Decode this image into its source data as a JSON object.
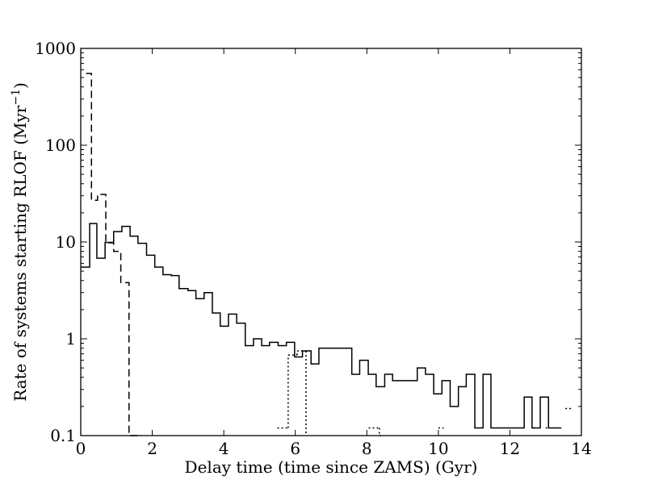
{
  "chart_data": {
    "type": "line",
    "title": "",
    "xlabel": "Delay time (time since ZAMS) (Gyr)",
    "ylabel": "Rate of systems starting RLOF (Myr",
    "ylabel_sup": "−1",
    "ylabel_tail": ")",
    "xlim": [
      0,
      14
    ],
    "ylim": [
      0.1,
      1000
    ],
    "yscale": "log",
    "grid": false,
    "legend": "none",
    "x_ticks": [
      0,
      2,
      4,
      6,
      8,
      10,
      12,
      14
    ],
    "x_tick_labels": [
      "0",
      "2",
      "4",
      "6",
      "8",
      "10",
      "12",
      "14"
    ],
    "y_ticks": [
      0.1,
      1,
      10,
      100,
      1000
    ],
    "y_tick_labels": [
      "0.1",
      "1",
      "10",
      "100",
      "1000"
    ],
    "series": [
      {
        "style": "solid",
        "color": "#000000",
        "step_edges": [
          0,
          0.25,
          0.45,
          0.68,
          0.92,
          1.15,
          1.38,
          1.6,
          1.84,
          2.07,
          2.3,
          2.53,
          2.75,
          3.0,
          3.22,
          3.45,
          3.68,
          3.9,
          4.13,
          4.36,
          4.6,
          4.83,
          5.06,
          5.28,
          5.52,
          5.75,
          5.98,
          6.2,
          6.44,
          6.66,
          6.89,
          7.58,
          7.8,
          8.04,
          8.26,
          8.5,
          8.72,
          8.95,
          9.41,
          9.64,
          9.87,
          10.1,
          10.33,
          10.56,
          10.78,
          11.02,
          11.25,
          11.47,
          11.93,
          12.4,
          12.62,
          12.85,
          13.08
        ],
        "values": [
          5.5,
          15.5,
          6.8,
          9.9,
          12.8,
          14.5,
          11.5,
          9.7,
          7.3,
          5.5,
          4.6,
          4.5,
          3.3,
          3.15,
          2.6,
          3.0,
          1.85,
          1.35,
          1.8,
          1.45,
          0.85,
          1.0,
          0.85,
          0.92,
          0.85,
          0.92,
          0.65,
          0.75,
          0.55,
          0.8,
          0.8,
          0.43,
          0.6,
          0.43,
          0.32,
          0.43,
          0.37,
          0.37,
          0.5,
          0.43,
          0.27,
          0.37,
          0.2,
          0.32,
          0.43,
          0.12,
          0.43,
          0.12,
          0.12,
          0.25,
          0.12,
          0.25,
          0.12
        ]
      },
      {
        "style": "dashed",
        "color": "#000000",
        "step_edges": [
          0.15,
          0.3,
          0.47,
          0.7,
          0.92,
          1.12,
          1.35
        ],
        "values": [
          550,
          27,
          31,
          9.8,
          8.0,
          3.8,
          0.1
        ]
      },
      {
        "style": "dotted",
        "color": "#000000",
        "segments": [
          {
            "x0": 5.5,
            "x1": 5.8,
            "y": 0.12
          },
          {
            "x0": 5.8,
            "x1": 6.05,
            "y": 0.68
          },
          {
            "x0": 6.05,
            "x1": 6.3,
            "y": 0.75
          },
          {
            "x0": 8.05,
            "x1": 8.35,
            "y": 0.12
          },
          {
            "x0": 8.35,
            "x1": 8.42,
            "y": 0.1
          },
          {
            "x0": 10.0,
            "x1": 10.15,
            "y": 0.12
          },
          {
            "x0": 12.65,
            "x1": 12.75,
            "y": 0.12
          },
          {
            "x0": 13.0,
            "x1": 13.1,
            "y": 0.12
          },
          {
            "x0": 13.55,
            "x1": 13.75,
            "y": 0.19
          }
        ],
        "verticals": [
          {
            "x": 5.8,
            "y0": 0.12,
            "y1": 0.68
          },
          {
            "x": 6.05,
            "y0": 0.68,
            "y1": 0.75
          },
          {
            "x": 6.3,
            "y0": 0.75,
            "y1": 0.1
          },
          {
            "x": 8.35,
            "y0": 0.12,
            "y1": 0.1
          }
        ]
      }
    ]
  }
}
